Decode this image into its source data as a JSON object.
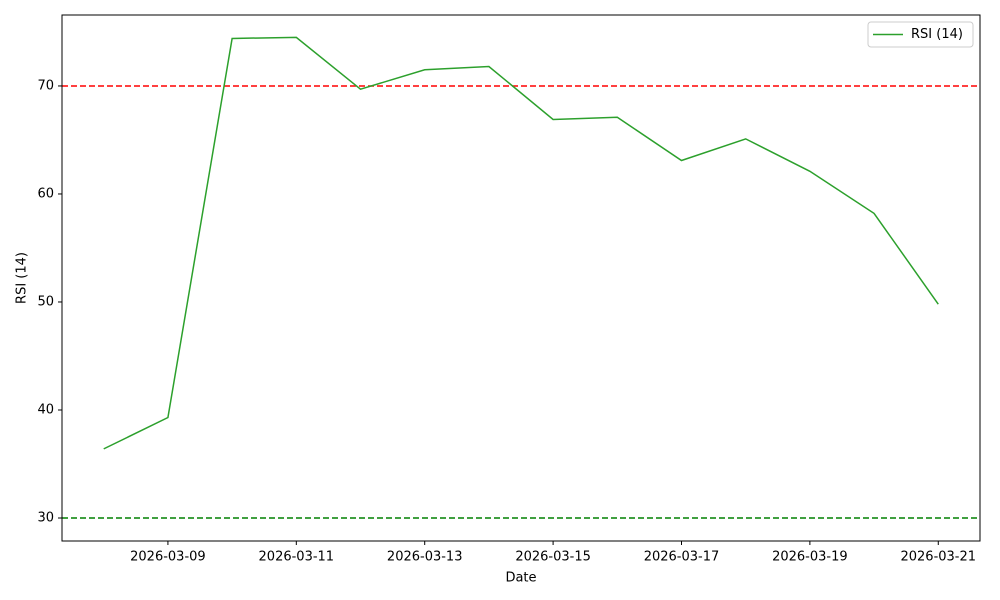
{
  "chart_data": {
    "type": "line",
    "y_label": "RSI (14)",
    "x_label": "Date",
    "x": [
      "2026-03-08",
      "2026-03-09",
      "2026-03-10",
      "2026-03-11",
      "2026-03-12",
      "2026-03-13",
      "2026-03-14",
      "2026-03-15",
      "2026-03-16",
      "2026-03-17",
      "2026-03-18",
      "2026-03-19",
      "2026-03-20",
      "2026-03-21"
    ],
    "series": [
      {
        "name": "RSI (14)",
        "color": "#2ca02c",
        "values": [
          36.4,
          39.3,
          74.4,
          74.5,
          69.7,
          71.5,
          71.8,
          66.9,
          67.1,
          63.1,
          65.1,
          62.1,
          58.2,
          49.8
        ]
      }
    ],
    "hlines": [
      {
        "value": 70,
        "color": "red"
      },
      {
        "value": 30,
        "color": "green"
      }
    ],
    "xlim": [
      "2026-03-07T08:24Z",
      "2026-03-21T15:36Z"
    ],
    "xticks": [
      "2026-03-09",
      "2026-03-11",
      "2026-03-13",
      "2026-03-15",
      "2026-03-17",
      "2026-03-19",
      "2026-03-21"
    ],
    "ylim": [
      27.87,
      76.57
    ],
    "yticks": [
      30,
      40,
      50,
      60,
      70
    ],
    "legend": "upper right"
  }
}
